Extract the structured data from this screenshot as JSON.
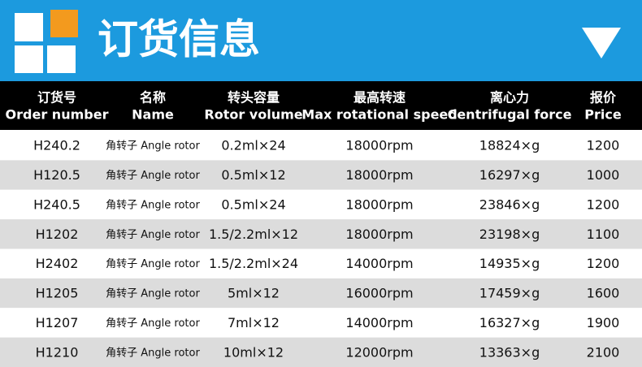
{
  "header": {
    "title": "订货信息"
  },
  "table": {
    "headers": [
      {
        "zh": "订货号",
        "en": "Order number"
      },
      {
        "zh": "名称",
        "en": "Name"
      },
      {
        "zh": "转头容量",
        "en": "Rotor volume"
      },
      {
        "zh": "最高转速",
        "en": "Max rotational speed"
      },
      {
        "zh": "离心力",
        "en": "Centrifugal force"
      },
      {
        "zh": "报价",
        "en": "Price"
      }
    ],
    "rows": [
      [
        "H240.2",
        "角转子 Angle rotor",
        "0.2ml×24",
        "18000rpm",
        "18824×g",
        "1200"
      ],
      [
        "H120.5",
        "角转子 Angle rotor",
        "0.5ml×12",
        "18000rpm",
        "16297×g",
        "1000"
      ],
      [
        "H240.5",
        "角转子 Angle rotor",
        "0.5ml×24",
        "18000rpm",
        "23846×g",
        "1200"
      ],
      [
        "H1202",
        "角转子 Angle rotor",
        "1.5/2.2ml×12",
        "18000rpm",
        "23198×g",
        "1100"
      ],
      [
        "H2402",
        "角转子 Angle rotor",
        "1.5/2.2ml×24",
        "14000rpm",
        "14935×g",
        "1200"
      ],
      [
        "H1205",
        "角转子 Angle rotor",
        "5ml×12",
        "16000rpm",
        "17459×g",
        "1600"
      ],
      [
        "H1207",
        "角转子 Angle rotor",
        "7ml×12",
        "14000rpm",
        "16327×g",
        "1900"
      ],
      [
        "H1210",
        "角转子 Angle rotor",
        "10ml×12",
        "12000rpm",
        "13363×g",
        "2100"
      ]
    ]
  }
}
